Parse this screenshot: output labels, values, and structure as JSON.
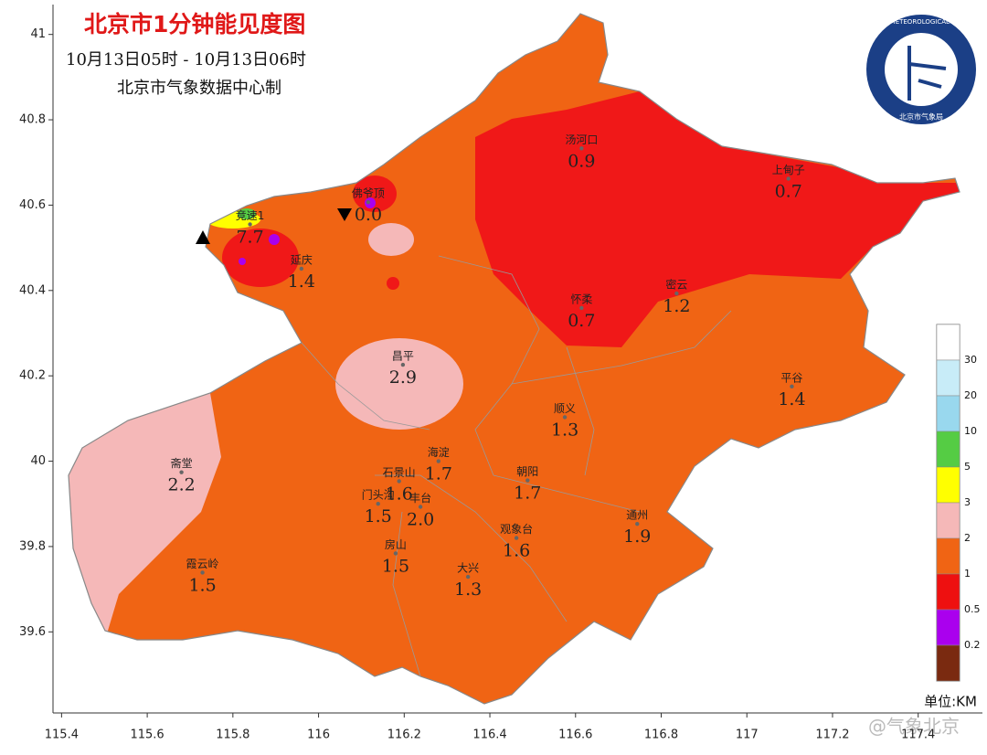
{
  "header": {
    "title": "北京市1分钟能见度图",
    "subtitle": "10月13日05时 - 10月13日06时",
    "issuer": "北京市气象数据中心制"
  },
  "axes": {
    "xlim": [
      115.38,
      117.55
    ],
    "ylim": [
      39.41,
      41.07
    ],
    "xticks": [
      115.4,
      115.6,
      115.8,
      116,
      116.2,
      116.4,
      116.6,
      116.8,
      117,
      117.2,
      117.4
    ],
    "yticks": [
      39.6,
      39.8,
      40,
      40.2,
      40.4,
      40.6,
      40.8,
      41
    ]
  },
  "stations": {
    "names": [
      "汤河口",
      "上甸子",
      "佛爷顶",
      "竞速1",
      "延庆",
      "怀柔",
      "密云",
      "昌平",
      "平谷",
      "顺义",
      "斋堂",
      "海淀",
      "石景山",
      "朝阳",
      "门头沟",
      "丰台",
      "观象台",
      "通州",
      "房山",
      "霞云岭",
      "大兴"
    ],
    "lon": [
      116.614,
      117.097,
      116.116,
      115.84,
      115.96,
      116.614,
      116.836,
      116.197,
      117.105,
      116.575,
      115.68,
      116.28,
      116.188,
      116.488,
      116.139,
      116.238,
      116.462,
      116.744,
      116.18,
      115.729,
      116.349
    ],
    "lat": [
      40.733,
      40.662,
      40.607,
      40.555,
      40.451,
      40.359,
      40.393,
      40.226,
      40.175,
      40.103,
      39.974,
      40.0,
      39.953,
      39.955,
      39.9,
      39.893,
      39.82,
      39.853,
      39.784,
      39.739,
      39.729
    ],
    "values": [
      "0.9",
      "0.7",
      "0.0",
      "7.7",
      "1.4",
      "0.7",
      "1.2",
      "2.9",
      "1.4",
      "1.3",
      "2.2",
      "1.7",
      "1.6",
      "1.7",
      "1.5",
      "2.0",
      "1.6",
      "1.9",
      "1.5",
      "1.5",
      "1.3"
    ]
  },
  "legend": {
    "labels": [
      30,
      20,
      10,
      5,
      3,
      2,
      1,
      0.5,
      0.2
    ],
    "colors": [
      "#ffffff",
      "#c8ecf8",
      "#99d8ee",
      "#55cc44",
      "#ffff00",
      "#f5b8b8",
      "#f06414",
      "#ee1010",
      "#aa00ee",
      "#7a2a10"
    ],
    "unit": "单位:KM"
  },
  "logo": {
    "text": "BEIJING METEOROLOGICAL SERVICE",
    "name": "北京市气象局"
  },
  "watermark": "@气象北京"
}
